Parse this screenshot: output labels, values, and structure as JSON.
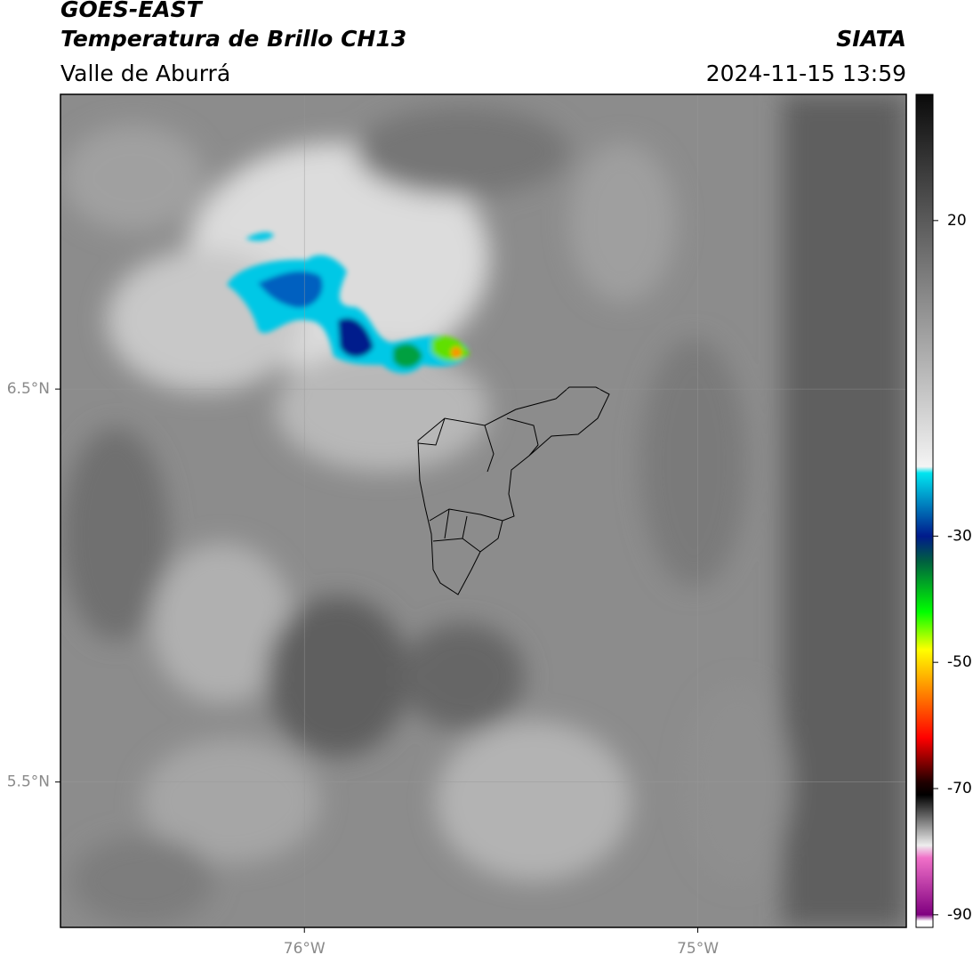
{
  "chart_data": {
    "type": "map",
    "title": "GOES-EAST",
    "subtitle": "Temperatura de Brillo CH13",
    "region": "Valle de Aburrá",
    "source": "SIATA",
    "timestamp": "2024-11-15 13:59",
    "xlim": [
      -76.62,
      -74.47
    ],
    "ylim": [
      5.13,
      7.25
    ],
    "xticks": [
      {
        "value": -76,
        "label": "76°W"
      },
      {
        "value": -75,
        "label": "75°W"
      }
    ],
    "yticks": [
      {
        "value": 6.5,
        "label": "6.5°N"
      },
      {
        "value": 5.5,
        "label": "5.5°N"
      }
    ],
    "grid": true,
    "colorbar": {
      "clim": [
        -92,
        40
      ],
      "ticks": [
        20,
        -30,
        -50,
        -70,
        -90
      ],
      "colormap": [
        {
          "value": 40,
          "color": "#0a0a0a"
        },
        {
          "value": 30,
          "color": "#333333"
        },
        {
          "value": 20,
          "color": "#5a5a5a"
        },
        {
          "value": 0,
          "color": "#a8a8a8"
        },
        {
          "value": -19,
          "color": "#f4f4f4"
        },
        {
          "value": -20,
          "color": "#00e5f0"
        },
        {
          "value": -30,
          "color": "#001a8c"
        },
        {
          "value": -34,
          "color": "#006040"
        },
        {
          "value": -42,
          "color": "#00ff00"
        },
        {
          "value": -48,
          "color": "#ffff00"
        },
        {
          "value": -55,
          "color": "#ff8000"
        },
        {
          "value": -62,
          "color": "#ff0000"
        },
        {
          "value": -69,
          "color": "#200000"
        },
        {
          "value": -71,
          "color": "#000000"
        },
        {
          "value": -79,
          "color": "#eeeeee"
        },
        {
          "value": -81,
          "color": "#f070c8"
        },
        {
          "value": -90,
          "color": "#800080"
        },
        {
          "value": -91,
          "color": "#ffffff"
        }
      ]
    }
  }
}
